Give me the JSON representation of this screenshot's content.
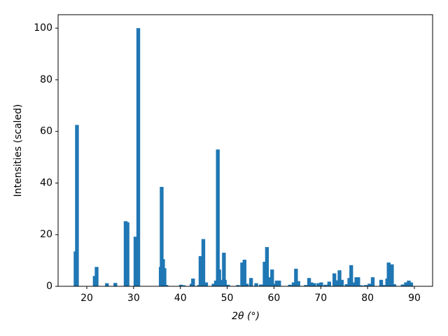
{
  "chart_data": {
    "type": "bar",
    "xlabel": "2θ (°)",
    "ylabel": "Intensities (scaled)",
    "color": "#1f77b4",
    "grid": false,
    "x": [
      17.6,
      17.9,
      21.7,
      22.1,
      24.3,
      26.1,
      28.3,
      28.7,
      30.4,
      31.0,
      35.8,
      36.0,
      36.3,
      36.6,
      37.0,
      40.1,
      40.7,
      42.4,
      42.7,
      44.0,
      44.3,
      44.9,
      45.5,
      47.1,
      47.6,
      48.0,
      48.3,
      48.6,
      49.3,
      49.5,
      50.2,
      52.3,
      53.2,
      53.7,
      54.2,
      55.1,
      56.2,
      57.2,
      58.0,
      58.5,
      59.0,
      59.6,
      60.0,
      60.6,
      61.1,
      63.4,
      64.2,
      64.7,
      65.2,
      66.8,
      67.5,
      68.0,
      68.6,
      69.5,
      70.1,
      71.0,
      71.8,
      72.9,
      73.4,
      74.0,
      74.5,
      75.5,
      76.1,
      76.5,
      77.0,
      77.6,
      78.0,
      78.6,
      79.6,
      80.4,
      81.1,
      82.9,
      83.4,
      84.2,
      84.5,
      85.2,
      85.7,
      87.5,
      88.2,
      88.8,
      89.3
    ],
    "values": [
      13.5,
      62.5,
      4,
      7.5,
      1.2,
      1.3,
      25.2,
      24.8,
      19.2,
      100,
      7.5,
      38.5,
      10.5,
      7,
      0.5,
      0.6,
      0.4,
      1.0,
      3.0,
      0.5,
      11.7,
      18.3,
      1.5,
      1.0,
      2.2,
      53,
      6.5,
      2.5,
      13,
      2.5,
      0.6,
      0.5,
      9.2,
      10.3,
      1,
      3.2,
      1.2,
      0.7,
      9.5,
      15.2,
      3.5,
      6.5,
      1,
      2.2,
      2.2,
      0.6,
      1.5,
      6.8,
      2,
      0.5,
      3.2,
      1.5,
      1.2,
      1.2,
      1.5,
      0.6,
      1.8,
      5,
      2.3,
      6.2,
      2.5,
      0.8,
      3.2,
      8.2,
      1.5,
      3.5,
      3.5,
      0.4,
      0.5,
      1,
      3.5,
      2.5,
      0.5,
      3,
      9.2,
      8.5,
      0.8,
      0.7,
      1.5,
      2.2,
      1.5
    ],
    "xlim": [
      13.87,
      93.89
    ],
    "ylim": [
      0,
      105.2
    ],
    "xticks": [
      20,
      30,
      40,
      50,
      60,
      70,
      80,
      90
    ],
    "yticks": [
      0,
      20,
      40,
      60,
      80,
      100
    ]
  }
}
